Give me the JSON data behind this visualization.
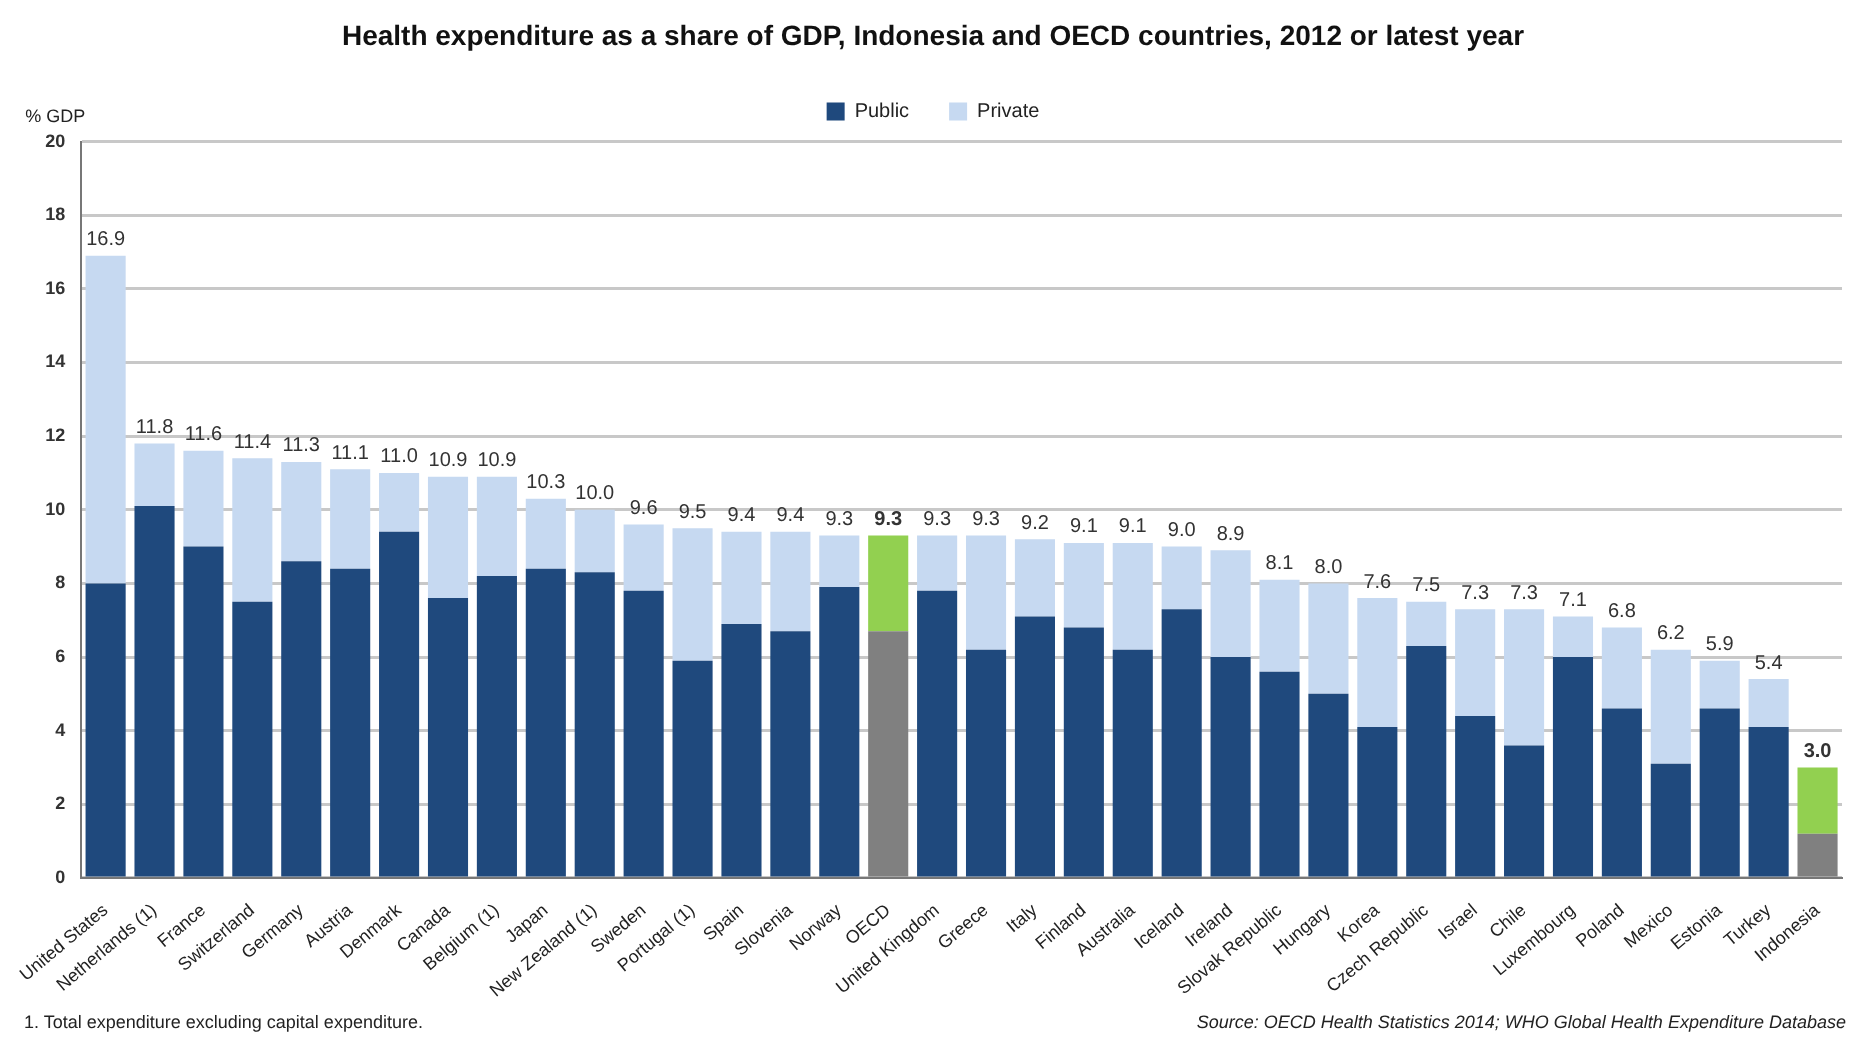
{
  "chart_data": {
    "type": "bar",
    "title": "Health expenditure as a share of GDP, Indonesia and OECD countries, 2012 or latest year",
    "ylabel": "% GDP",
    "categories": [
      "United States",
      "Netherlands (1)",
      "France",
      "Switzerland",
      "Germany",
      "Austria",
      "Denmark",
      "Canada",
      "Belgium (1)",
      "Japan",
      "New Zealand (1)",
      "Sweden",
      "Portugal (1)",
      "Spain",
      "Slovenia",
      "Norway",
      "OECD",
      "United Kingdom",
      "Greece",
      "Italy",
      "Finland",
      "Australia",
      "Iceland",
      "Ireland",
      "Slovak Republic",
      "Hungary",
      "Korea",
      "Czech Republic",
      "Israel",
      "Chile",
      "Luxembourg",
      "Poland",
      "Mexico",
      "Estonia",
      "Turkey",
      "Indonesia"
    ],
    "stacked": true,
    "series": [
      {
        "name": "Public",
        "color": "#1f497d",
        "colors": [
          "#1f497d",
          "#1f497d",
          "#1f497d",
          "#1f497d",
          "#1f497d",
          "#1f497d",
          "#1f497d",
          "#1f497d",
          "#1f497d",
          "#1f497d",
          "#1f497d",
          "#1f497d",
          "#1f497d",
          "#1f497d",
          "#1f497d",
          "#1f497d",
          "#808080",
          "#1f497d",
          "#1f497d",
          "#1f497d",
          "#1f497d",
          "#1f497d",
          "#1f497d",
          "#1f497d",
          "#1f497d",
          "#1f497d",
          "#1f497d",
          "#1f497d",
          "#1f497d",
          "#1f497d",
          "#1f497d",
          "#1f497d",
          "#1f497d",
          "#1f497d",
          "#1f497d",
          "#808080"
        ],
        "values": [
          8.0,
          10.1,
          9.0,
          7.5,
          8.6,
          8.4,
          9.4,
          7.6,
          8.2,
          8.4,
          8.3,
          7.8,
          5.9,
          6.9,
          6.7,
          7.9,
          6.7,
          7.8,
          6.2,
          7.1,
          6.8,
          6.2,
          7.3,
          6.0,
          5.6,
          5.0,
          4.1,
          6.3,
          4.4,
          3.6,
          6.0,
          4.6,
          3.1,
          4.6,
          4.1,
          1.2
        ]
      },
      {
        "name": "Private",
        "color": "#c6d9f1",
        "colors": [
          "#c6d9f1",
          "#c6d9f1",
          "#c6d9f1",
          "#c6d9f1",
          "#c6d9f1",
          "#c6d9f1",
          "#c6d9f1",
          "#c6d9f1",
          "#c6d9f1",
          "#c6d9f1",
          "#c6d9f1",
          "#c6d9f1",
          "#c6d9f1",
          "#c6d9f1",
          "#c6d9f1",
          "#c6d9f1",
          "#92d050",
          "#c6d9f1",
          "#c6d9f1",
          "#c6d9f1",
          "#c6d9f1",
          "#c6d9f1",
          "#c6d9f1",
          "#c6d9f1",
          "#c6d9f1",
          "#c6d9f1",
          "#c6d9f1",
          "#c6d9f1",
          "#c6d9f1",
          "#c6d9f1",
          "#c6d9f1",
          "#c6d9f1",
          "#c6d9f1",
          "#c6d9f1",
          "#c6d9f1",
          "#92d050"
        ],
        "values": [
          8.9,
          1.7,
          2.6,
          3.9,
          2.7,
          2.7,
          1.6,
          3.3,
          2.7,
          1.9,
          1.7,
          1.8,
          3.6,
          2.5,
          2.7,
          1.4,
          2.6,
          1.5,
          3.1,
          2.1,
          2.3,
          2.9,
          1.7,
          2.9,
          2.5,
          3.0,
          3.5,
          1.2,
          2.9,
          3.7,
          1.1,
          2.2,
          3.1,
          1.3,
          1.3,
          1.8
        ]
      }
    ],
    "totals": [
      "16.9",
      "11.8",
      "11.6",
      "11.4",
      "11.3",
      "11.1",
      "11.0",
      "10.9",
      "10.9",
      "10.3",
      "10.0",
      "9.6",
      "9.5",
      "9.4",
      "9.4",
      "9.3",
      "9.3",
      "9.3",
      "9.3",
      "9.2",
      "9.1",
      "9.1",
      "9.0",
      "8.9",
      "8.1",
      "8.0",
      "7.6",
      "7.5",
      "7.3",
      "7.3",
      "7.1",
      "6.8",
      "6.2",
      "5.9",
      "5.4",
      "3.0"
    ],
    "ylim": [
      0,
      20
    ],
    "yticks": [
      0,
      2,
      4,
      6,
      8,
      10,
      12,
      14,
      16,
      18,
      20
    ],
    "grid": "y",
    "legend": "top",
    "annotations": [
      "1. Total expenditure excluding capital expenditure.",
      "Source: OECD Health Statistics 2014; WHO Global Health Expenditure Database"
    ]
  }
}
